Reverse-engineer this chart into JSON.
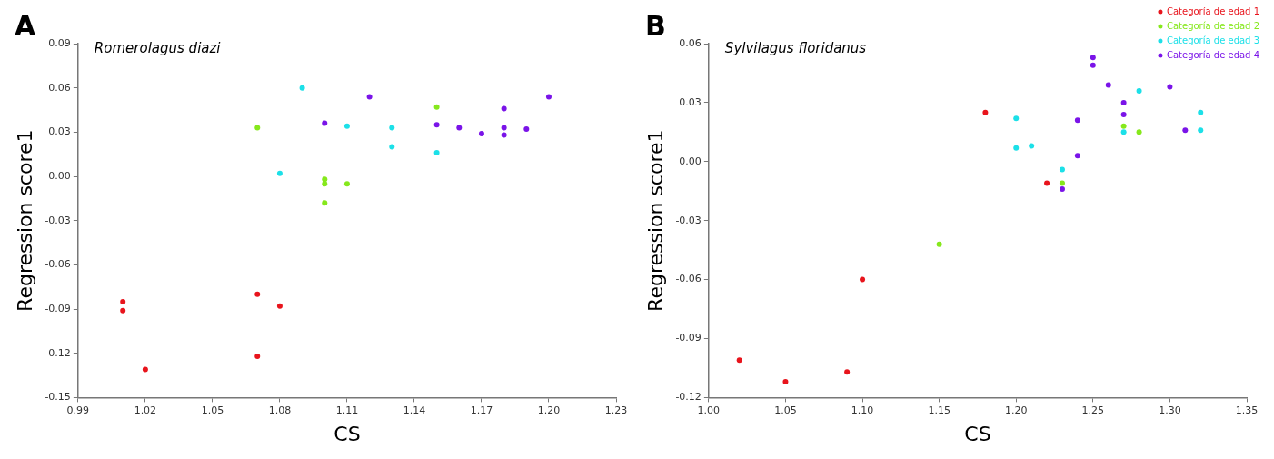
{
  "chart_data": [
    {
      "type": "scatter",
      "title": "Romerolagus diazi",
      "xlabel": "CS",
      "ylabel": "Regression score1",
      "annotations": [
        "A"
      ],
      "xlim": [
        0.99,
        1.23
      ],
      "xticks": [
        {
          "value": 0.99,
          "label": "0.99"
        },
        {
          "value": 1.02,
          "label": "1.02"
        },
        {
          "value": 1.05,
          "label": "1.05"
        },
        {
          "value": 1.08,
          "label": "1.08"
        },
        {
          "value": 1.11,
          "label": "1.11"
        },
        {
          "value": 1.14,
          "label": "1.14"
        },
        {
          "value": 1.17,
          "label": "1.17"
        },
        {
          "value": 1.2,
          "label": "1.20"
        },
        {
          "value": 1.23,
          "label": "1.23"
        }
      ],
      "ylim": [
        -0.15,
        0.09
      ],
      "yticks": [
        {
          "value": -0.15,
          "label": "-0.15"
        },
        {
          "value": -0.12,
          "label": "-0.12"
        },
        {
          "value": -0.09,
          "label": "-0.09"
        },
        {
          "value": -0.06,
          "label": "-0.06"
        },
        {
          "value": -0.03,
          "label": "-0.03"
        },
        {
          "value": 0,
          "label": "0.00"
        },
        {
          "value": 0.03,
          "label": "0.03"
        },
        {
          "value": 0.06,
          "label": "0.06"
        },
        {
          "value": 0.09,
          "label": "0.09"
        }
      ],
      "grid": false,
      "legend": false,
      "marker": "circle",
      "series": [
        {
          "color": "#e8141c",
          "x": [
            1.01,
            1.01,
            1.02,
            1.07,
            1.07,
            1.08
          ],
          "values": [
            -0.085,
            -0.091,
            -0.131,
            -0.08,
            -0.122,
            -0.088
          ]
        },
        {
          "color": "#86e81c",
          "x": [
            1.07,
            1.1,
            1.1,
            1.1,
            1.11,
            1.15
          ],
          "values": [
            0.033,
            -0.002,
            -0.005,
            -0.018,
            -0.005,
            0.047
          ]
        },
        {
          "color": "#1ce0e8",
          "x": [
            1.08,
            1.09,
            1.11,
            1.13,
            1.13,
            1.15
          ],
          "values": [
            0.002,
            0.06,
            0.034,
            0.033,
            0.02,
            0.016
          ]
        },
        {
          "color": "#7a14e8",
          "x": [
            1.1,
            1.12,
            1.15,
            1.16,
            1.17,
            1.18,
            1.18,
            1.18,
            1.19,
            1.2
          ],
          "values": [
            0.036,
            0.054,
            0.035,
            0.033,
            0.029,
            0.046,
            0.033,
            0.028,
            0.032,
            0.054
          ]
        }
      ]
    },
    {
      "type": "scatter",
      "title": "Sylvilagus floridanus",
      "xlabel": "CS",
      "ylabel": "Regression score1",
      "annotations": [
        "B"
      ],
      "xlim": [
        1.0,
        1.35
      ],
      "xticks": [
        {
          "value": 1.0,
          "label": "1.00"
        },
        {
          "value": 1.05,
          "label": "1.05"
        },
        {
          "value": 1.1,
          "label": "1.10"
        },
        {
          "value": 1.15,
          "label": "1.15"
        },
        {
          "value": 1.2,
          "label": "1.20"
        },
        {
          "value": 1.25,
          "label": "1.25"
        },
        {
          "value": 1.3,
          "label": "1.30"
        },
        {
          "value": 1.35,
          "label": "1.35"
        }
      ],
      "ylim": [
        -0.12,
        0.06
      ],
      "yticks": [
        {
          "value": -0.12,
          "label": "-0.12"
        },
        {
          "value": -0.09,
          "label": "-0.09"
        },
        {
          "value": -0.06,
          "label": "-0.06"
        },
        {
          "value": -0.03,
          "label": "-0.03"
        },
        {
          "value": 0,
          "label": "0.00"
        },
        {
          "value": 0.03,
          "label": "0.03"
        },
        {
          "value": 0.06,
          "label": "0.06"
        }
      ],
      "grid": false,
      "legend": "top right",
      "marker": "circle",
      "series": [
        {
          "name": "Categoría de edad 1",
          "color": "#e8141c",
          "x": [
            1.02,
            1.05,
            1.09,
            1.1,
            1.18,
            1.22
          ],
          "values": [
            -0.101,
            -0.112,
            -0.107,
            -0.06,
            0.025,
            -0.011
          ]
        },
        {
          "name": "Categoría de edad 2",
          "color": "#86e81c",
          "x": [
            1.15,
            1.23,
            1.27,
            1.28
          ],
          "values": [
            -0.042,
            -0.011,
            0.018,
            0.015
          ]
        },
        {
          "name": "Categoría de edad 3",
          "color": "#1ce0e8",
          "x": [
            1.2,
            1.2,
            1.21,
            1.23,
            1.27,
            1.28,
            1.32,
            1.32
          ],
          "values": [
            0.022,
            0.007,
            0.008,
            -0.004,
            0.015,
            0.036,
            0.025,
            0.016
          ]
        },
        {
          "name": "Categoría de edad 4",
          "color": "#7a14e8",
          "x": [
            1.23,
            1.24,
            1.24,
            1.25,
            1.25,
            1.26,
            1.27,
            1.27,
            1.3,
            1.31
          ],
          "values": [
            -0.014,
            0.021,
            0.003,
            0.053,
            0.049,
            0.039,
            0.03,
            0.024,
            0.038,
            0.016
          ]
        }
      ]
    }
  ]
}
